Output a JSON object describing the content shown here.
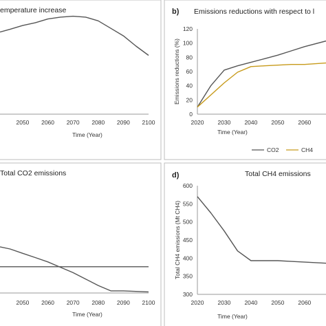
{
  "chart_data": [
    {
      "id": "a",
      "panel_label": "",
      "type": "line",
      "title": "emperature increase",
      "xlabel": "Time (Year)",
      "ylabel": "",
      "xticks": [
        "2050",
        "2060",
        "2070",
        "2080",
        "2090",
        "2100"
      ],
      "xlim": [
        2041,
        2100
      ],
      "ylim": [
        0,
        1.15
      ],
      "grid": false,
      "series": [
        {
          "color": "#555555",
          "x": [
            2041,
            2045,
            2050,
            2055,
            2060,
            2065,
            2070,
            2075,
            2080,
            2085,
            2090,
            2095,
            2100
          ],
          "y": [
            0.88,
            0.91,
            0.95,
            0.98,
            1.02,
            1.04,
            1.05,
            1.04,
            1.0,
            0.92,
            0.84,
            0.73,
            0.63
          ]
        }
      ]
    },
    {
      "id": "b",
      "panel_label": "b)",
      "type": "line",
      "title": "Emissions reductions with respect to l",
      "xlabel": "Time (Year)",
      "ylabel": "Emissions reductions (%)",
      "xticks": [
        "2020",
        "2030",
        "2040",
        "2050",
        "2060"
      ],
      "yticks": [
        "0",
        "20",
        "40",
        "60",
        "80",
        "100",
        "120"
      ],
      "xlim": [
        2020,
        2068
      ],
      "ylim": [
        0,
        120
      ],
      "grid": false,
      "legend": {
        "position": "bottom-right",
        "entries": [
          "CO2",
          "CH4"
        ]
      },
      "series": [
        {
          "name": "CO2",
          "color": "#555555",
          "x": [
            2020,
            2025,
            2030,
            2035,
            2040,
            2045,
            2050,
            2055,
            2060,
            2068
          ],
          "y": [
            10,
            40,
            62,
            68,
            73,
            78,
            83,
            89,
            95,
            103
          ]
        },
        {
          "name": "CH4",
          "color": "#c79a1a",
          "x": [
            2020,
            2025,
            2030,
            2035,
            2040,
            2045,
            2050,
            2055,
            2060,
            2068
          ],
          "y": [
            10,
            27,
            44,
            59,
            67,
            68,
            69,
            70,
            70,
            72
          ]
        }
      ]
    },
    {
      "id": "c",
      "panel_label": "",
      "type": "line",
      "title": "Total CO2 emissions",
      "xlabel": "Time (Year)",
      "ylabel": "",
      "xticks": [
        "2050",
        "2060",
        "2070",
        "2080",
        "2090",
        "2100"
      ],
      "xlim": [
        2041,
        2100
      ],
      "ylim": [
        0,
        1
      ],
      "grid": false,
      "series": [
        {
          "color": "#555555",
          "x": [
            2041,
            2045,
            2050,
            2055,
            2060,
            2065,
            2070,
            2075,
            2080,
            2085,
            2090,
            2095,
            2100
          ],
          "y": [
            0.43,
            0.41,
            0.37,
            0.33,
            0.29,
            0.24,
            0.19,
            0.13,
            0.07,
            0.02,
            0.02,
            0.015,
            0.01
          ]
        },
        {
          "color": "#555555",
          "x": [
            2041,
            2100
          ],
          "y": [
            0.245,
            0.245
          ]
        }
      ]
    },
    {
      "id": "d",
      "panel_label": "d)",
      "type": "line",
      "title": "Total CH4 emissions",
      "xlabel": "Time (Year)",
      "ylabel": "Total CH4 emissions (Mt CH4)",
      "xticks": [
        "2020",
        "2030",
        "2040",
        "2050",
        "2060"
      ],
      "yticks": [
        "300",
        "350",
        "400",
        "450",
        "500",
        "550",
        "600"
      ],
      "xlim": [
        2020,
        2068
      ],
      "ylim": [
        300,
        600
      ],
      "grid": false,
      "series": [
        {
          "color": "#555555",
          "x": [
            2020,
            2025,
            2030,
            2035,
            2040,
            2045,
            2050,
            2055,
            2060,
            2068
          ],
          "y": [
            570,
            525,
            475,
            420,
            393,
            393,
            393,
            391,
            389,
            386
          ]
        }
      ]
    }
  ]
}
